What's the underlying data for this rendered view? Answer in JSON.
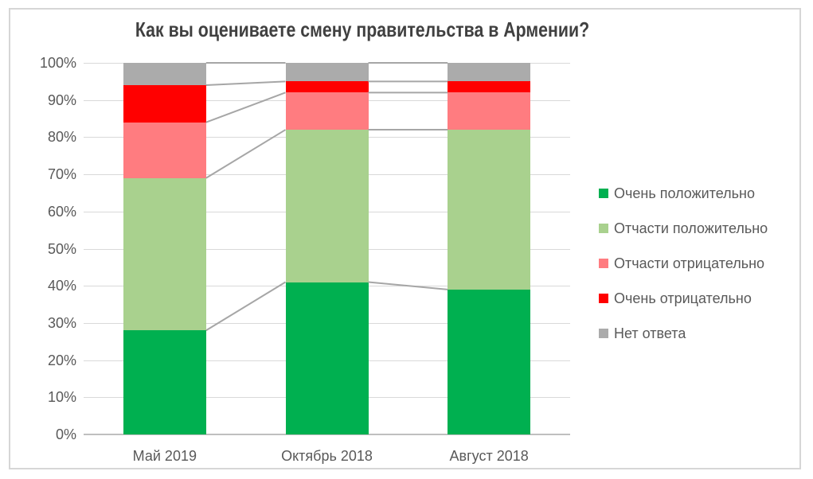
{
  "title": "Как вы оцениваете смену правительства в Армении?",
  "chart_data": {
    "type": "bar",
    "subtype": "stacked-100-percent-column",
    "title": "Как вы оцениваете смену правительства в Армении?",
    "categories": [
      "Май 2019",
      "Октябрь 2018",
      "Август 2018"
    ],
    "series": [
      {
        "name": "Очень положительно",
        "color": "#00B050",
        "values": [
          28,
          41,
          39
        ]
      },
      {
        "name": "Отчасти положительно",
        "color": "#A9D18E",
        "values": [
          41,
          41,
          43
        ]
      },
      {
        "name": "Отчасти отрицательно",
        "color": "#FF7C80",
        "values": [
          15,
          10,
          10
        ]
      },
      {
        "name": "Очень отрицательно",
        "color": "#FF0000",
        "values": [
          10,
          3,
          3
        ]
      },
      {
        "name": "Нет ответа",
        "color": "#ABABAB",
        "values": [
          6,
          5,
          5
        ]
      }
    ],
    "y_tick_labels": [
      "0%",
      "10%",
      "20%",
      "30%",
      "40%",
      "50%",
      "60%",
      "70%",
      "80%",
      "90%",
      "100%"
    ],
    "ylim": [
      0,
      100
    ],
    "xlabel": "",
    "ylabel": "",
    "grid": true,
    "legend_position": "right",
    "series_connector_lines": true
  },
  "colors": {
    "gridline": "#D9D9D9",
    "axis_line": "#BFBFBF",
    "connector_line": "#A6A6A6",
    "axis_text": "#595959",
    "title_text": "#404040",
    "chart_border": "#D6D6D6"
  }
}
